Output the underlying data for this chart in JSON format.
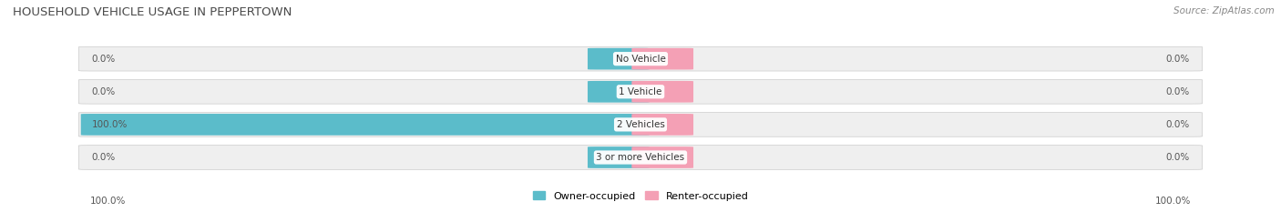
{
  "title": "HOUSEHOLD VEHICLE USAGE IN PEPPERTOWN",
  "source": "Source: ZipAtlas.com",
  "categories": [
    "No Vehicle",
    "1 Vehicle",
    "2 Vehicles",
    "3 or more Vehicles"
  ],
  "owner_values": [
    0.0,
    0.0,
    100.0,
    0.0
  ],
  "renter_values": [
    0.0,
    0.0,
    0.0,
    0.0
  ],
  "owner_color": "#5bbcca",
  "renter_color": "#f4a0b5",
  "bar_bg_color": "#efefef",
  "bar_border_color": "#d8d8d8",
  "title_color": "#4a4a4a",
  "label_color": "#555555",
  "source_color": "#888888",
  "axis_label_left": "100.0%",
  "axis_label_right": "100.0%",
  "figsize": [
    14.06,
    2.33
  ],
  "dpi": 100,
  "max_val": 100.0,
  "min_owner_bar_width": 8.0,
  "min_renter_bar_width": 8.0
}
